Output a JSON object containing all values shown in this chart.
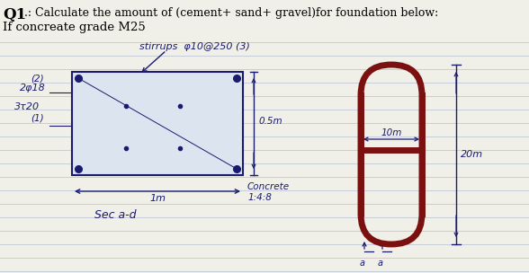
{
  "bg_color": "#f0f0e8",
  "line_color": "#1a1a6e",
  "red_color": "#7a1010",
  "title_bold": "Q1",
  "title_text": ".: Calculate the amount of (cement+ sand+ gravel)for foundation below:",
  "subtitle": "If concreate grade M25",
  "stirrups_label": "stirrups  φ10@250 (3)",
  "label_2": "(2)",
  "label_2418": "2φ18",
  "label_3420": "3τ20",
  "label_1": "(1)",
  "dim_05m": "0.5m",
  "dim_1m": "1m",
  "sec_label": "Sec a-d",
  "concrete_label": "Concrete\n1:4:8",
  "dim_10m": "10m",
  "dim_20m": "20m",
  "arrow_label": "a",
  "notebook_line_color": "#c0c8d8",
  "rect_fill": "#dce4f0"
}
